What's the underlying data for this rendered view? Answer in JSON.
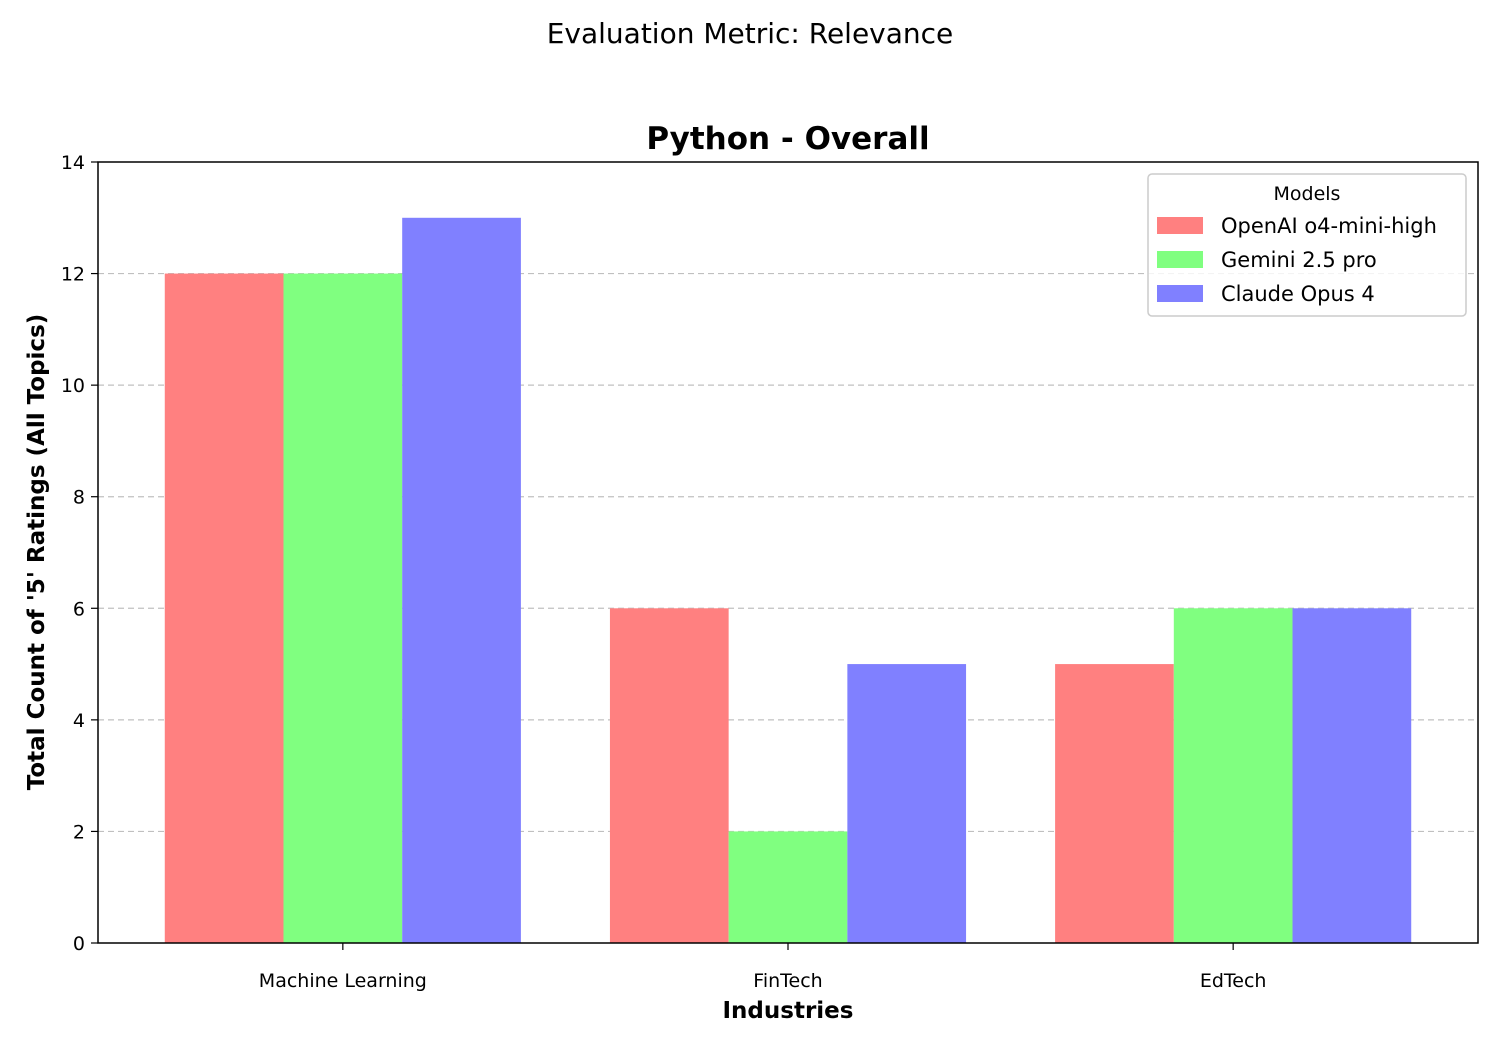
{
  "figure": {
    "suptitle": "Evaluation Metric: Relevance"
  },
  "chart_data": {
    "type": "bar",
    "title": "Python - Overall",
    "xlabel": "Industries",
    "ylabel": "Total Count of '5' Ratings (All Topics)",
    "categories": [
      "Machine Learning",
      "FinTech",
      "EdTech"
    ],
    "series": [
      {
        "name": "OpenAI o4-mini-high",
        "values": [
          12,
          6,
          5
        ],
        "color": "#ff8080"
      },
      {
        "name": "Gemini 2.5 pro",
        "values": [
          12,
          2,
          6
        ],
        "color": "#80ff80"
      },
      {
        "name": "Claude Opus 4",
        "values": [
          13,
          5,
          6
        ],
        "color": "#8080ff"
      }
    ],
    "ylim": [
      0,
      14
    ],
    "yticks": [
      0,
      2,
      4,
      6,
      8,
      10,
      12,
      14
    ],
    "grid": {
      "y": true,
      "style": "dashed"
    },
    "legend": {
      "title": "Models",
      "placement": "top-right"
    }
  }
}
